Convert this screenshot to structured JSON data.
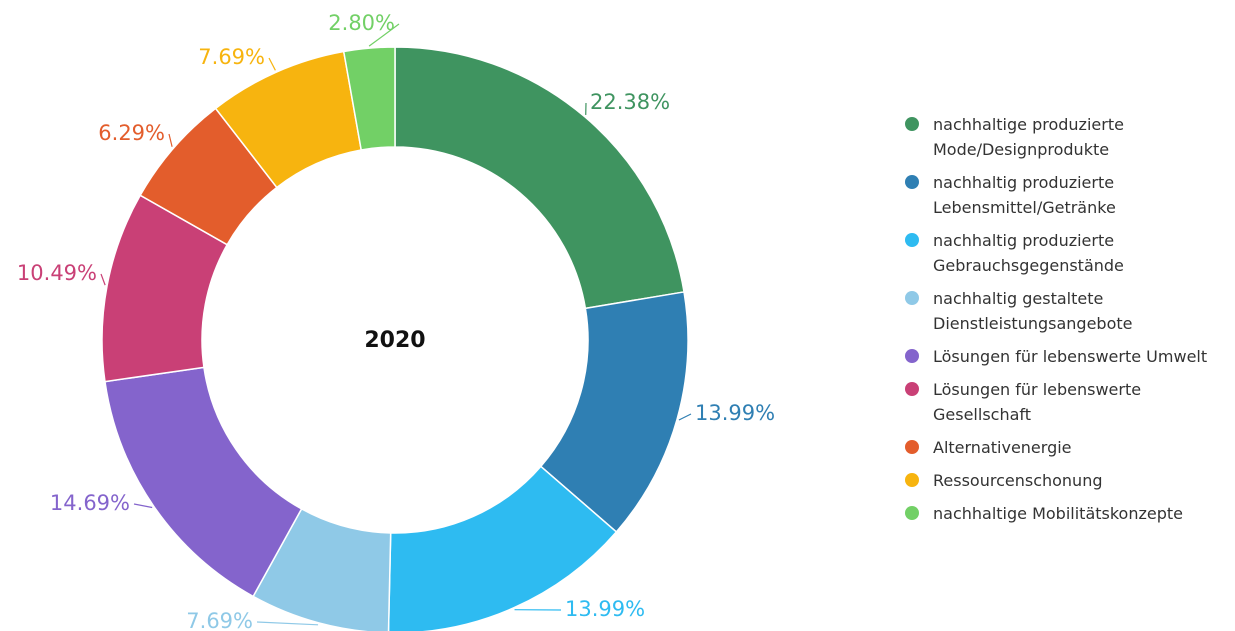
{
  "chart_data": {
    "type": "pie",
    "title": "",
    "center_label": "2020",
    "legend_position": "right",
    "slices": [
      {
        "label": "nachhaltige produzierte Mode/Designprodukte",
        "label_lines": [
          "nachhaltige produzierte",
          "Mode/Designprodukte"
        ],
        "value": 22.38,
        "value_label": "22.38%",
        "color": "#3f9460"
      },
      {
        "label": "nachhaltig produzierte Lebensmittel/Getränke",
        "label_lines": [
          "nachhaltig produzierte",
          "Lebensmittel/Getränke"
        ],
        "value": 13.99,
        "value_label": "13.99%",
        "color": "#2f7fb3"
      },
      {
        "label": "nachhaltig produzierte Gebrauchsgegenstände",
        "label_lines": [
          "nachhaltig produzierte",
          "Gebrauchsgegenstände"
        ],
        "value": 13.99,
        "value_label": "13.99%",
        "color": "#2ebbf1"
      },
      {
        "label": "nachhaltig gestaltete Dienstleistungsangebote",
        "label_lines": [
          "nachhaltig gestaltete",
          "Dienstleistungsangebote"
        ],
        "value": 7.69,
        "value_label": "7.69%",
        "color": "#8fc9e7"
      },
      {
        "label": "Lösungen für lebenswerte Umwelt",
        "label_lines": [
          "Lösungen für lebenswerte Umwelt"
        ],
        "value": 14.69,
        "value_label": "14.69%",
        "color": "#8464cc"
      },
      {
        "label": "Lösungen für lebenswerte Gesellschaft",
        "label_lines": [
          "Lösungen für lebenswerte",
          "Gesellschaft"
        ],
        "value": 10.49,
        "value_label": "10.49%",
        "color": "#c94076"
      },
      {
        "label": "Alternativenergie",
        "label_lines": [
          "Alternativenergie"
        ],
        "value": 6.29,
        "value_label": "6.29%",
        "color": "#e35d2c"
      },
      {
        "label": "Ressourcenschonung",
        "label_lines": [
          "Ressourcenschonung"
        ],
        "value": 7.69,
        "value_label": "7.69%",
        "color": "#f7b40f"
      },
      {
        "label": "nachhaltige Mobilitätskonzepte",
        "label_lines": [
          "nachhaltige Mobilitätskonzepte"
        ],
        "value": 2.8,
        "value_label": "2.80%",
        "color": "#72d066"
      }
    ]
  }
}
